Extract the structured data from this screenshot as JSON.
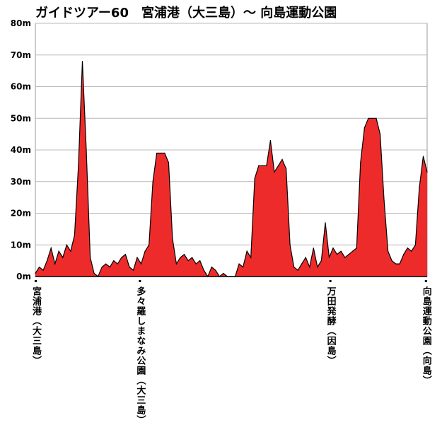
{
  "chart_data": {
    "type": "area",
    "title": "ガイドツアー60　宮浦港（大三島）～ 向島運動公園",
    "xlabel": "",
    "ylabel": "",
    "ylim": [
      0,
      80
    ],
    "yticks": [
      "0m",
      "10m",
      "20m",
      "30m",
      "40m",
      "50m",
      "60m",
      "70m",
      "80m"
    ],
    "grid": true,
    "fill_color": "#ee2b2b",
    "line_color": "#000000",
    "x_range": [
      0,
      100
    ],
    "waypoints": [
      {
        "x": 0,
        "label": "宮浦港（大三島）"
      },
      {
        "x": 26.6,
        "label": "多々羅しまなみ公園（大三島）"
      },
      {
        "x": 75.2,
        "label": "万田発酵（因島）"
      },
      {
        "x": 99.6,
        "label": "向島運動公園（向島）"
      }
    ],
    "x": [
      0,
      1,
      2,
      3,
      4,
      5,
      6,
      7,
      8,
      9,
      10,
      11,
      12,
      13,
      14,
      15,
      16,
      17,
      18,
      19,
      20,
      21,
      22,
      23,
      24,
      25,
      26,
      27,
      28,
      29,
      30,
      31,
      32,
      33,
      34,
      35,
      36,
      37,
      38,
      39,
      40,
      41,
      42,
      43,
      44,
      45,
      46,
      47,
      48,
      49,
      50,
      51,
      52,
      53,
      54,
      55,
      56,
      57,
      58,
      59,
      60,
      61,
      62,
      63,
      64,
      65,
      66,
      67,
      68,
      69,
      70,
      71,
      72,
      73,
      74,
      75,
      76,
      77,
      78,
      79,
      80,
      81,
      82,
      83,
      84,
      85,
      86,
      87,
      88,
      89,
      90,
      91,
      92,
      93,
      94,
      95,
      96,
      97,
      98,
      99,
      100
    ],
    "values": [
      1,
      3,
      2,
      5,
      9,
      4,
      8,
      6,
      10,
      8,
      13,
      35,
      68,
      40,
      6,
      1,
      0,
      3,
      4,
      3,
      5,
      4,
      6,
      7,
      3,
      2,
      6,
      4,
      8,
      10,
      30,
      39,
      39,
      39,
      36,
      12,
      4,
      6,
      7,
      5,
      6,
      4,
      5,
      2,
      0,
      3,
      2,
      0,
      1,
      0,
      0,
      0,
      4,
      3,
      8,
      6,
      31,
      35,
      35,
      35,
      43,
      33,
      35,
      37,
      34,
      10,
      3,
      2,
      4,
      6,
      3,
      9,
      3,
      5,
      17,
      6,
      9,
      7,
      8,
      6,
      7,
      8,
      9,
      36,
      47,
      50,
      50,
      50,
      45,
      24,
      8,
      5,
      4,
      4,
      7,
      9,
      8,
      10,
      28,
      38,
      33
    ]
  }
}
